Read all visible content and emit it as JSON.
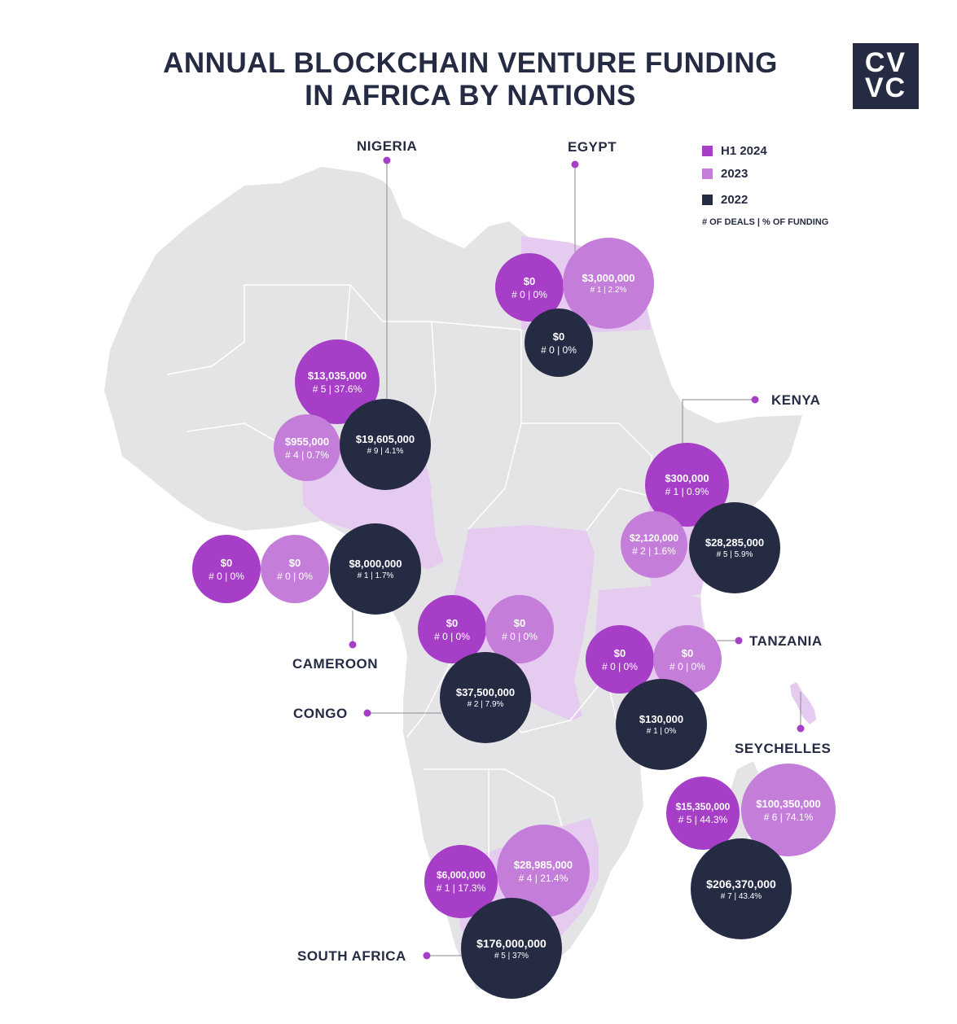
{
  "title": {
    "line1": "ANNUAL BLOCKCHAIN VENTURE FUNDING",
    "line2": "IN AFRICA BY NATIONS"
  },
  "logo": {
    "line1": "CV",
    "line2": "VC"
  },
  "colors": {
    "h1_2024": "#a63ec7",
    "y2023": "#c47ed9",
    "y2022": "#262b44",
    "land": "#e4e4e7",
    "highlight": "#e6cbf0",
    "text": "#262b44"
  },
  "legend": {
    "items": [
      {
        "label": "H1 2024",
        "color": "#a63ec7"
      },
      {
        "label": "2023",
        "color": "#c47ed9"
      },
      {
        "label": "2022",
        "color": "#262b44"
      }
    ],
    "note": "# OF DEALS | % OF FUNDING"
  },
  "countries": {
    "nigeria": {
      "name": "NIGERIA",
      "h1_2024": {
        "amount": "$13,035,000",
        "deals": "# 5  |  37.6%"
      },
      "y2023": {
        "amount": "$955,000",
        "deals": "# 4  |  0.7%"
      },
      "y2022": {
        "amount": "$19,605,000",
        "deals": "# 9  |  4.1%"
      }
    },
    "egypt": {
      "name": "EGYPT",
      "h1_2024": {
        "amount": "$0",
        "deals": "# 0  |  0%"
      },
      "y2023": {
        "amount": "$3,000,000",
        "deals": "# 1  |  2.2%"
      },
      "y2022": {
        "amount": "$0",
        "deals": "# 0  |  0%"
      }
    },
    "kenya": {
      "name": "KENYA",
      "h1_2024": {
        "amount": "$300,000",
        "deals": "# 1  |  0.9%"
      },
      "y2023": {
        "amount": "$2,120,000",
        "deals": "# 2  |  1.6%"
      },
      "y2022": {
        "amount": "$28,285,000",
        "deals": "# 5  |  5.9%"
      }
    },
    "cameroon": {
      "name": "CAMEROON",
      "h1_2024": {
        "amount": "$0",
        "deals": "# 0  |  0%"
      },
      "y2023": {
        "amount": "$0",
        "deals": "# 0  |  0%"
      },
      "y2022": {
        "amount": "$8,000,000",
        "deals": "# 1  |  1.7%"
      }
    },
    "congo": {
      "name": "CONGO",
      "h1_2024": {
        "amount": "$0",
        "deals": "# 0  |  0%"
      },
      "y2023": {
        "amount": "$0",
        "deals": "# 0  |  0%"
      },
      "y2022": {
        "amount": "$37,500,000",
        "deals": "# 2  |  7.9%"
      }
    },
    "tanzania": {
      "name": "TANZANIA",
      "h1_2024": {
        "amount": "$0",
        "deals": "# 0  |  0%"
      },
      "y2023": {
        "amount": "$0",
        "deals": "# 0  |  0%"
      },
      "y2022": {
        "amount": "$130,000",
        "deals": "# 1  |  0%"
      }
    },
    "seychelles": {
      "name": "SEYCHELLES",
      "h1_2024": {
        "amount": "$15,350,000",
        "deals": "# 5  |  44.3%"
      },
      "y2023": {
        "amount": "$100,350,000",
        "deals": "# 6  |  74.1%"
      },
      "y2022": {
        "amount": "$206,370,000",
        "deals": "# 7  |  43.4%"
      }
    },
    "south_africa": {
      "name": "SOUTH AFRICA",
      "h1_2024": {
        "amount": "$6,000,000",
        "deals": "# 1  |  17.3%"
      },
      "y2023": {
        "amount": "$28,985,000",
        "deals": "# 4  |  21.4%"
      },
      "y2022": {
        "amount": "$176,000,000",
        "deals": "# 5  |  37%"
      }
    }
  }
}
